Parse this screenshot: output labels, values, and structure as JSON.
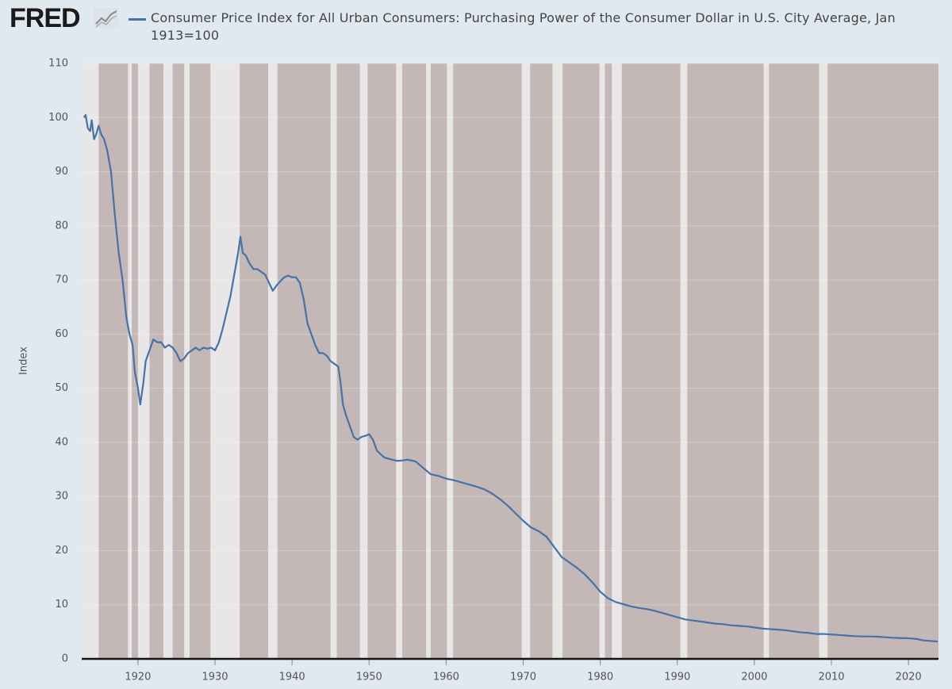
{
  "logo": "FRED",
  "chart_data": {
    "type": "line",
    "ylabel": "Index",
    "xlim": [
      1912.7,
      2023.9
    ],
    "ylim": [
      0,
      110
    ],
    "xticks": [
      1920,
      1930,
      1940,
      1950,
      1960,
      1970,
      1980,
      1990,
      2000,
      2010,
      2020
    ],
    "yticks": [
      0,
      10,
      20,
      30,
      40,
      50,
      60,
      70,
      80,
      90,
      100,
      110
    ],
    "grid": true,
    "shade_color": "#c4b8b7",
    "shaded_periods": [
      [
        1914.9,
        1918.7
      ],
      [
        1919.2,
        1920.0
      ],
      [
        1921.5,
        1923.3
      ],
      [
        1924.5,
        1926.0
      ],
      [
        1926.7,
        1929.4
      ],
      [
        1933.2,
        1936.9
      ],
      [
        1938.1,
        1945.0
      ],
      [
        1945.8,
        1948.8
      ],
      [
        1949.8,
        1953.5
      ],
      [
        1954.3,
        1957.4
      ],
      [
        1958.0,
        1960.1
      ],
      [
        1960.9,
        1969.8
      ],
      [
        1970.9,
        1973.8
      ],
      [
        1975.1,
        1979.9
      ],
      [
        1980.6,
        1981.5
      ],
      [
        1982.8,
        1990.4
      ],
      [
        1991.3,
        2001.2
      ],
      [
        2001.9,
        2008.4
      ],
      [
        2009.5,
        2023.9
      ]
    ],
    "x": [
      1913.0,
      1913.2,
      1913.5,
      1913.8,
      1914.0,
      1914.3,
      1914.6,
      1914.9,
      1915.2,
      1915.6,
      1916.0,
      1916.5,
      1917.0,
      1917.5,
      1918.0,
      1918.5,
      1918.9,
      1919.3,
      1919.6,
      1920.0,
      1920.3,
      1920.7,
      1921.0,
      1921.5,
      1922.0,
      1922.5,
      1923.0,
      1923.5,
      1924.0,
      1924.5,
      1925.0,
      1925.5,
      1926.0,
      1926.5,
      1927.0,
      1927.5,
      1928.0,
      1928.5,
      1929.0,
      1929.5,
      1930.0,
      1930.5,
      1931.0,
      1931.5,
      1932.0,
      1932.5,
      1933.0,
      1933.3,
      1933.6,
      1934.0,
      1934.5,
      1935.0,
      1935.5,
      1936.0,
      1936.5,
      1937.0,
      1937.5,
      1938.0,
      1938.5,
      1939.0,
      1939.5,
      1940.0,
      1940.5,
      1941.0,
      1941.5,
      1942.0,
      1942.5,
      1943.0,
      1943.5,
      1944.0,
      1944.5,
      1945.0,
      1945.5,
      1946.0,
      1946.3,
      1946.6,
      1947.0,
      1947.5,
      1948.0,
      1948.5,
      1949.0,
      1949.5,
      1950.0,
      1950.5,
      1951.0,
      1951.5,
      1952.0,
      1952.5,
      1953.0,
      1953.5,
      1954.0,
      1955.0,
      1956.0,
      1957.0,
      1958.0,
      1959.0,
      1960.0,
      1961.0,
      1962.0,
      1963.0,
      1964.0,
      1965.0,
      1966.0,
      1967.0,
      1968.0,
      1969.0,
      1970.0,
      1971.0,
      1972.0,
      1973.0,
      1974.0,
      1975.0,
      1976.0,
      1977.0,
      1978.0,
      1979.0,
      1980.0,
      1981.0,
      1982.0,
      1983.0,
      1984.0,
      1985.0,
      1986.0,
      1987.0,
      1988.0,
      1989.0,
      1990.0,
      1991.0,
      1992.0,
      1993.0,
      1994.0,
      1995.0,
      1996.0,
      1997.0,
      1998.0,
      1999.0,
      2000.0,
      2001.0,
      2002.0,
      2003.0,
      2004.0,
      2005.0,
      2006.0,
      2007.0,
      2008.0,
      2009.0,
      2010.0,
      2011.0,
      2012.0,
      2013.0,
      2014.0,
      2015.0,
      2016.0,
      2017.0,
      2018.0,
      2019.0,
      2020.0,
      2021.0,
      2022.0,
      2023.0,
      2023.8
    ],
    "series": [
      {
        "name": "Consumer Price Index for All Urban Consumers: Purchasing Power of the Consumer Dollar in U.S. City Average, Jan 1913=100",
        "color": "#4572a7",
        "values": [
          100,
          100.5,
          98,
          97.5,
          99.5,
          96,
          97,
          98.5,
          97,
          96,
          94,
          90,
          82,
          75,
          70,
          63,
          60,
          58,
          53,
          50,
          47,
          51,
          55,
          57,
          59,
          58.5,
          58.5,
          57.5,
          58,
          57.5,
          56.5,
          55,
          55.5,
          56.5,
          57,
          57.5,
          57,
          57.5,
          57.3,
          57.5,
          57,
          58.5,
          61,
          64,
          67,
          71,
          75,
          78,
          75,
          74.5,
          73,
          72,
          72,
          71.5,
          71,
          69.5,
          68,
          69,
          69.8,
          70.5,
          70.8,
          70.5,
          70.5,
          69.5,
          66.5,
          62,
          60,
          58,
          56.5,
          56.5,
          56,
          55,
          54.5,
          54,
          51,
          47,
          45,
          43,
          41,
          40.5,
          41,
          41.2,
          41.5,
          40.5,
          38.5,
          37.8,
          37.2,
          37,
          36.8,
          36.6,
          36.6,
          36.8,
          36.5,
          35.3,
          34.1,
          33.8,
          33.3,
          33,
          32.6,
          32.2,
          31.8,
          31.3,
          30.5,
          29.5,
          28.3,
          26.9,
          25.5,
          24.3,
          23.6,
          22.6,
          20.7,
          18.8,
          17.8,
          16.8,
          15.6,
          14.1,
          12.4,
          11.2,
          10.5,
          10.1,
          9.7,
          9.4,
          9.2,
          8.9,
          8.5,
          8.1,
          7.7,
          7.3,
          7.1,
          6.9,
          6.7,
          6.5,
          6.4,
          6.2,
          6.1,
          6.0,
          5.8,
          5.6,
          5.5,
          5.4,
          5.3,
          5.1,
          4.9,
          4.8,
          4.6,
          4.6,
          4.5,
          4.4,
          4.3,
          4.2,
          4.15,
          4.15,
          4.1,
          4.0,
          3.9,
          3.85,
          3.8,
          3.7,
          3.4,
          3.3,
          3.2
        ]
      }
    ]
  }
}
